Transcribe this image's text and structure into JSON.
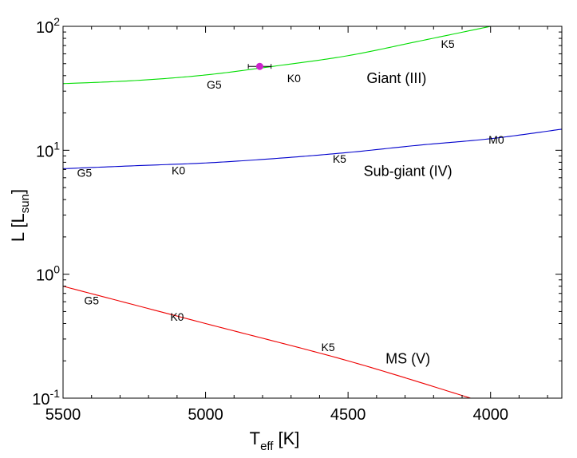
{
  "chart_data": {
    "type": "line",
    "title": "",
    "xlabel": {
      "main": "T",
      "sub": "eff",
      "unit": "[K]"
    },
    "ylabel": {
      "main": "L [L",
      "sub": "sun",
      "close": "]"
    },
    "x_scale": "linear",
    "x_reversed": true,
    "xlim": [
      5500,
      3750
    ],
    "y_scale": "log",
    "ylim": [
      0.1,
      100
    ],
    "x_ticks": [
      5500,
      5000,
      4500,
      4000
    ],
    "x_tick_labels": [
      "5500",
      "5000",
      "4500",
      "4000"
    ],
    "y_ticks": [
      0.1,
      1,
      10,
      100
    ],
    "y_tick_labels": [
      {
        "base": "10",
        "exp": "-1"
      },
      {
        "base": "10",
        "exp": "0"
      },
      {
        "base": "10",
        "exp": "1"
      },
      {
        "base": "10",
        "exp": "2"
      }
    ],
    "grid": false,
    "series": [
      {
        "name": "Giant (III)",
        "color": "#00dd00",
        "points": [
          [
            5500,
            34.5
          ],
          [
            5250,
            36.5
          ],
          [
            5000,
            40.5
          ],
          [
            4750,
            48
          ],
          [
            4500,
            58
          ],
          [
            4250,
            76
          ],
          [
            4000,
            100
          ]
        ],
        "spectral_labels": [
          {
            "text": "G5",
            "x": 4970,
            "y": 31.5
          },
          {
            "text": "K0",
            "x": 4690,
            "y": 35.5
          },
          {
            "text": "K5",
            "x": 4150,
            "y": 67
          }
        ],
        "class_label": {
          "text": "Giant (III)",
          "x": 4330,
          "y": 35
        }
      },
      {
        "name": "Sub-giant (IV)",
        "color": "#0000cc",
        "points": [
          [
            5500,
            7.1
          ],
          [
            5250,
            7.5
          ],
          [
            5000,
            7.9
          ],
          [
            4750,
            8.6
          ],
          [
            4500,
            9.6
          ],
          [
            4250,
            11
          ],
          [
            4000,
            12.4
          ],
          [
            3750,
            14.8
          ]
        ],
        "spectral_labels": [
          {
            "text": "G5",
            "x": 5425,
            "y": 6.1
          },
          {
            "text": "K0",
            "x": 5095,
            "y": 6.4
          },
          {
            "text": "K5",
            "x": 4530,
            "y": 7.9
          },
          {
            "text": "M0",
            "x": 3980,
            "y": 11.3
          }
        ],
        "class_label": {
          "text": "Sub-giant (IV)",
          "x": 4290,
          "y": 6.2
        }
      },
      {
        "name": "MS (V)",
        "color": "#ee0000",
        "points": [
          [
            5500,
            0.8
          ],
          [
            5000,
            0.4
          ],
          [
            4500,
            0.2
          ],
          [
            4070,
            0.1
          ]
        ],
        "spectral_labels": [
          {
            "text": "G5",
            "x": 5400,
            "y": 0.57
          },
          {
            "text": "K0",
            "x": 5100,
            "y": 0.42
          },
          {
            "text": "K5",
            "x": 4570,
            "y": 0.24
          }
        ],
        "class_label": {
          "text": "MS (V)",
          "x": 4290,
          "y": 0.19
        }
      }
    ],
    "star": {
      "teff": 4810,
      "teff_err": 40,
      "lum": 47.5,
      "color": "#cc22cc"
    }
  }
}
